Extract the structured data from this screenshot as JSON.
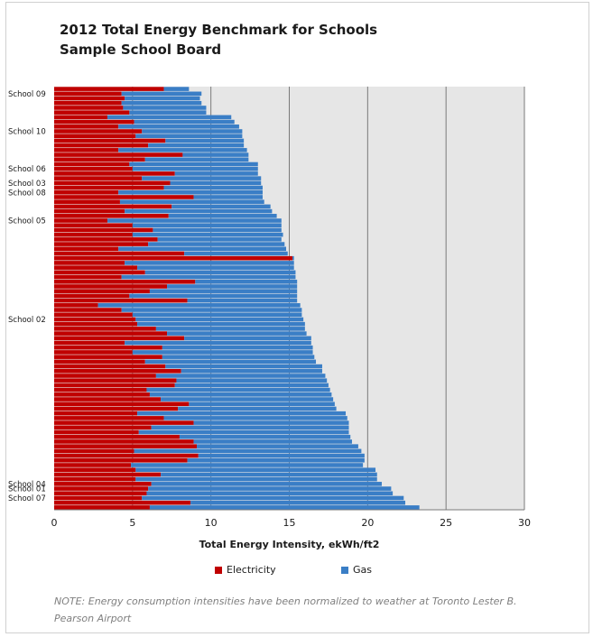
{
  "chart_data": {
    "type": "bar",
    "orientation": "horizontal",
    "stacked": true,
    "title": "2012 Total Energy Benchmark for Schools",
    "subtitle": "Sample School Board",
    "xlabel": "Total Energy Intensity, ekWh/ft2",
    "xlim": [
      0,
      30
    ],
    "xticks": [
      0,
      5,
      10,
      15,
      20,
      25,
      30
    ],
    "grid": "vertical",
    "legend_position": "bottom",
    "colors": {
      "Electricity": "#c00000",
      "Gas": "#3a7ec6",
      "plot_bg": "#e6e6e6"
    },
    "series": [
      {
        "name": "Electricity",
        "values": [
          7.0,
          4.3,
          4.5,
          4.3,
          4.4,
          4.8,
          3.4,
          5.1,
          4.1,
          5.6,
          5.2,
          7.1,
          6.0,
          4.1,
          8.2,
          5.8,
          4.8,
          5.0,
          7.7,
          5.6,
          7.4,
          7.0,
          4.1,
          8.9,
          4.2,
          7.5,
          4.5,
          7.3,
          3.4,
          5.0,
          6.3,
          5.0,
          6.6,
          6.0,
          4.1,
          8.3,
          15.2,
          4.5,
          5.3,
          5.8,
          4.3,
          9.0,
          7.2,
          6.1,
          4.8,
          8.5,
          2.8,
          4.3,
          5.0,
          5.2,
          5.3,
          6.5,
          7.2,
          8.3,
          4.5,
          6.9,
          5.0,
          6.9,
          5.8,
          7.1,
          8.1,
          6.5,
          7.8,
          7.7,
          5.9,
          6.1,
          6.8,
          8.6,
          7.9,
          5.3,
          7.0,
          8.9,
          6.2,
          5.4,
          8.0,
          8.9,
          9.1,
          5.1,
          9.2,
          8.5,
          4.9,
          5.2,
          6.8,
          5.2,
          6.2,
          6.0,
          5.9,
          5.6,
          8.7,
          6.1
        ],
        "x_end_hint": ""
      },
      {
        "name": "Gas",
        "values": [
          1.6,
          5.1,
          4.8,
          5.1,
          5.3,
          4.9,
          7.9,
          6.4,
          7.7,
          6.4,
          6.8,
          5.0,
          6.1,
          8.2,
          4.2,
          6.6,
          8.2,
          8.0,
          5.3,
          7.6,
          5.8,
          6.3,
          9.2,
          4.4,
          9.2,
          6.3,
          9.4,
          6.9,
          11.1,
          9.5,
          8.2,
          9.6,
          7.9,
          8.7,
          10.7,
          6.6,
          0.1,
          10.8,
          10.0,
          9.6,
          11.1,
          6.5,
          8.3,
          9.4,
          10.7,
          7.0,
          12.9,
          11.5,
          10.8,
          10.7,
          10.7,
          9.5,
          8.9,
          8.1,
          11.9,
          9.6,
          11.5,
          9.7,
          10.9,
          10.0,
          9.0,
          10.8,
          9.6,
          9.8,
          11.7,
          11.6,
          11.0,
          9.3,
          10.1,
          13.3,
          11.7,
          9.9,
          12.6,
          13.4,
          10.9,
          10.1,
          10.3,
          14.5,
          10.6,
          11.3,
          14.8,
          15.3,
          13.8,
          15.4,
          14.7,
          15.5,
          15.7,
          16.7,
          13.7,
          17.2
        ]
      }
    ],
    "named_rows": [
      {
        "label": "School 09",
        "index": 1
      },
      {
        "label": "School 10",
        "index": 9
      },
      {
        "label": "School 06",
        "index": 17
      },
      {
        "label": "School 03",
        "index": 20
      },
      {
        "label": "School 08",
        "index": 22
      },
      {
        "label": "School 05",
        "index": 28
      },
      {
        "label": "School 02",
        "index": 49
      },
      {
        "label": "School 04",
        "index": 84
      },
      {
        "label": "School 01",
        "index": 85
      },
      {
        "label": "School 07",
        "index": 87
      }
    ]
  },
  "legend": {
    "electricity": "Electricity",
    "gas": "Gas"
  },
  "note": "NOTE: Energy consumption intensities have been normalized to weather at Toronto Lester B. Pearson Airport"
}
